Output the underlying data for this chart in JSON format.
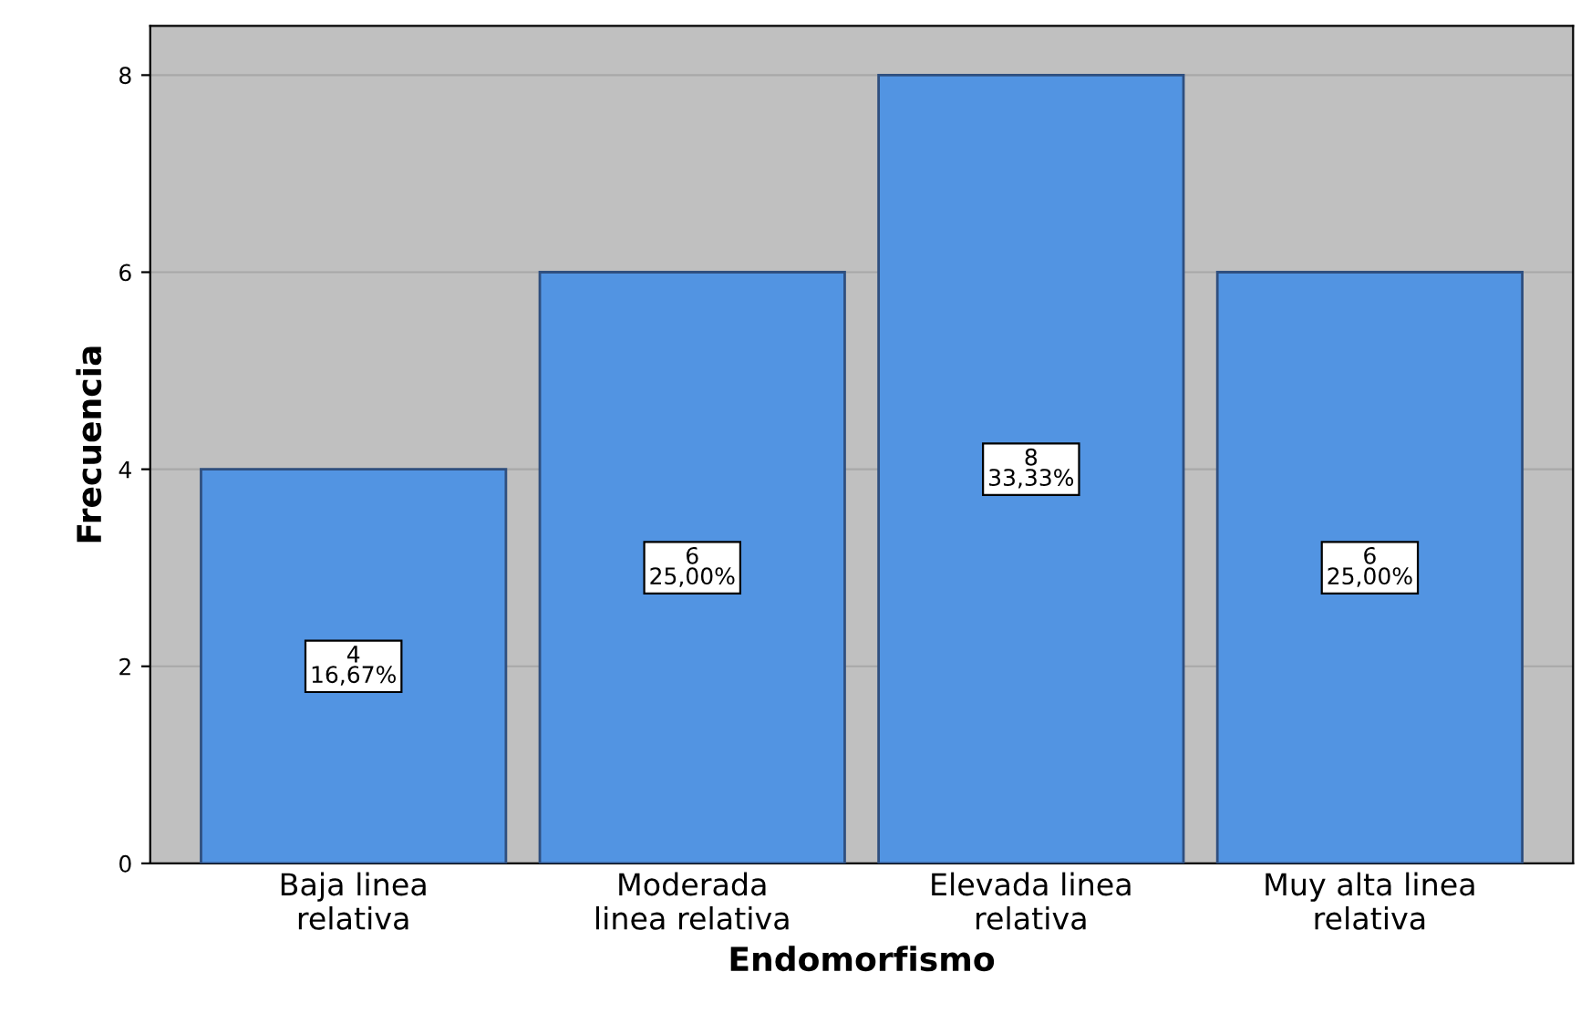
{
  "chart_data": {
    "type": "bar",
    "xlabel": "Endomorfismo",
    "ylabel": "Frecuencia",
    "categories": [
      "Baja linea\nrelativa",
      "Moderada\nlinea relativa",
      "Elevada linea\nrelativa",
      "Muy alta linea\nrelativa"
    ],
    "values": [
      4,
      6,
      8,
      6
    ],
    "color": "#5294e2",
    "value_labels": [
      "4\n16,67%",
      "6\n25,00%",
      "8\n33,33%",
      "6\n25,00%"
    ],
    "ylim": [
      0,
      8.5
    ],
    "yticks": [
      0,
      2,
      4,
      6,
      8
    ],
    "grid": "y"
  }
}
